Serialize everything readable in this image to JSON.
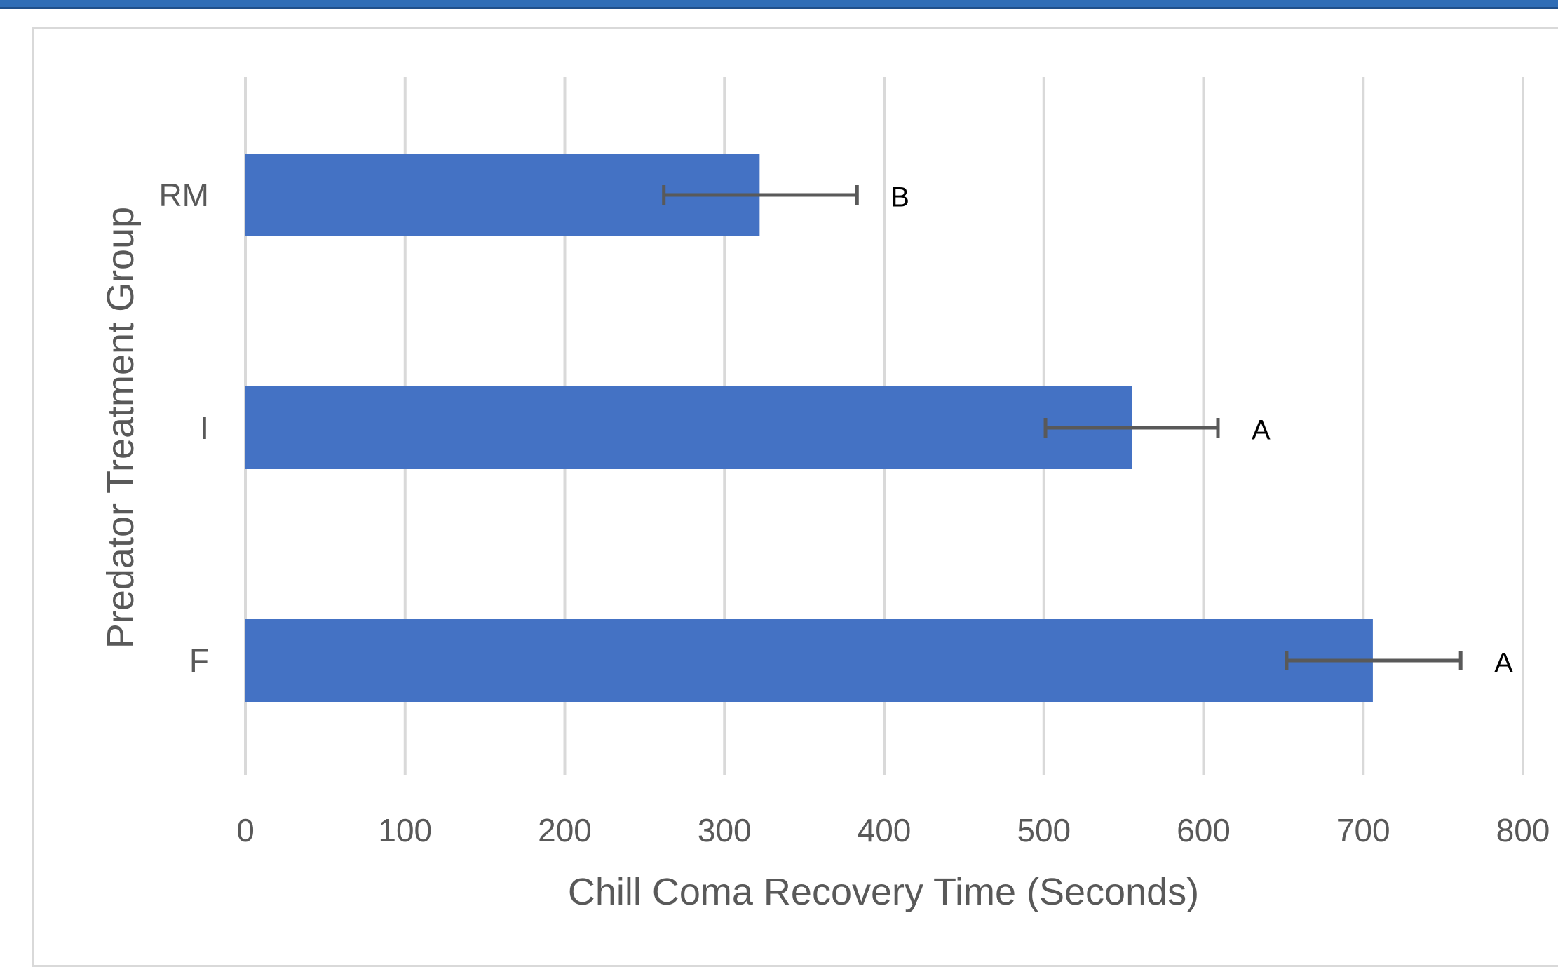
{
  "colors": {
    "bar": "#4472c4",
    "grid": "#d9d9d9",
    "error_bar": "#595959",
    "text": "#595959",
    "letters": "#000000",
    "top_strip": "#2f6db6"
  },
  "chart_data": {
    "type": "bar",
    "orientation": "horizontal",
    "categories": [
      "RM",
      "I",
      "F"
    ],
    "values": [
      322,
      555,
      706
    ],
    "error": [
      {
        "low": 262,
        "high": 383
      },
      {
        "low": 501,
        "high": 609
      },
      {
        "low": 652,
        "high": 761
      }
    ],
    "significance_letters": [
      "B",
      "A",
      "A"
    ],
    "xlabel": "Chill Coma Recovery Time (Seconds)",
    "ylabel": "Predator Treatment Group",
    "xlim": [
      0,
      800
    ],
    "xticks": [
      0,
      100,
      200,
      300,
      400,
      500,
      600,
      700,
      800
    ],
    "grid": "vertical"
  }
}
